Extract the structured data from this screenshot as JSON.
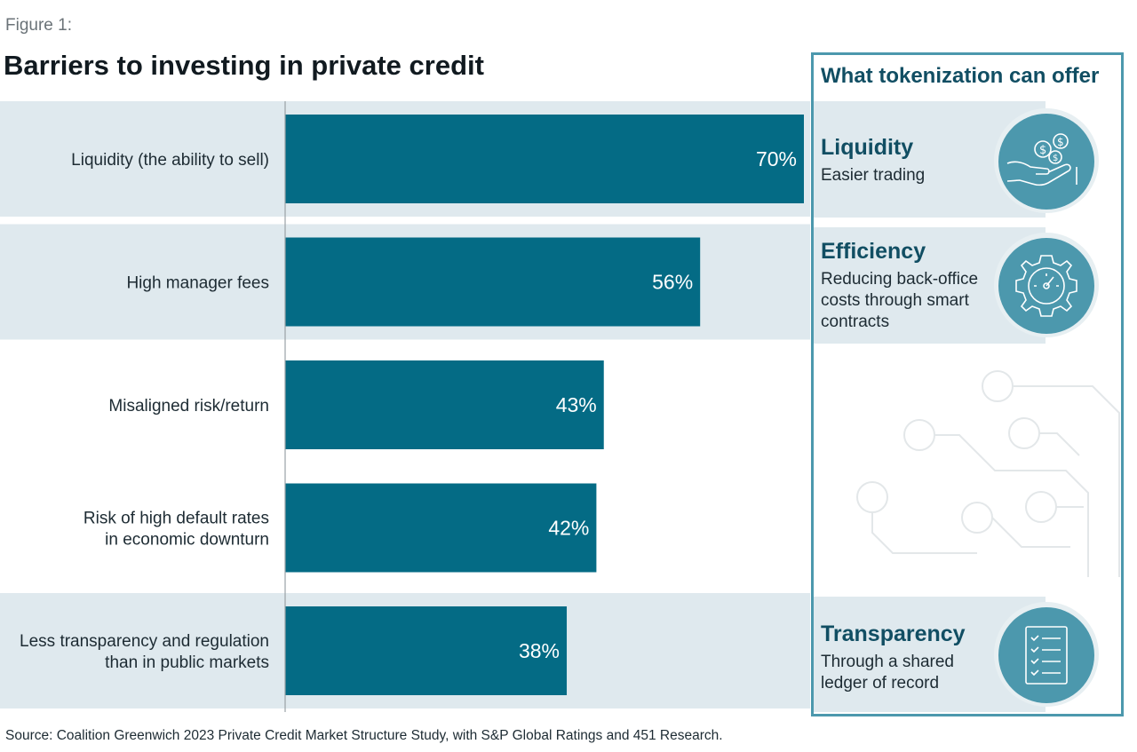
{
  "figure_label": "Figure 1:",
  "chart_data": {
    "type": "bar",
    "orientation": "horizontal",
    "title": "Barriers to investing in private credit",
    "categories": [
      [
        "Liquidity (the ability to sell)"
      ],
      [
        "High manager fees"
      ],
      [
        "Misaligned risk/return"
      ],
      [
        "Risk of high default rates",
        "in economic downturn"
      ],
      [
        "Less transparency and regulation",
        "than in public markets"
      ]
    ],
    "values": [
      70,
      56,
      43,
      42,
      38
    ],
    "value_labels": [
      "70%",
      "56%",
      "43%",
      "42%",
      "38%"
    ],
    "shaded_rows": [
      true,
      true,
      false,
      false,
      true
    ],
    "xlim": [
      0,
      70
    ],
    "grid": false,
    "bar_color": "#046b85",
    "band_color": "#dfe9ee"
  },
  "panel": {
    "title": "What tokenization can offer",
    "frame_color": "#4c98ad",
    "items": [
      {
        "heading": "Liquidity",
        "description": "Easier trading",
        "icon": "hand-coins-icon"
      },
      {
        "heading": "Efficiency",
        "description": "Reducing back-office costs through smart contracts",
        "icon": "gear-gauge-icon"
      },
      {
        "heading": "Transparency",
        "description": "Through a shared ledger of record",
        "icon": "checklist-icon"
      }
    ]
  },
  "source": "Source: Coalition Greenwich 2023 Private Credit Market Structure Study, with S&P Global Ratings and 451 Research."
}
